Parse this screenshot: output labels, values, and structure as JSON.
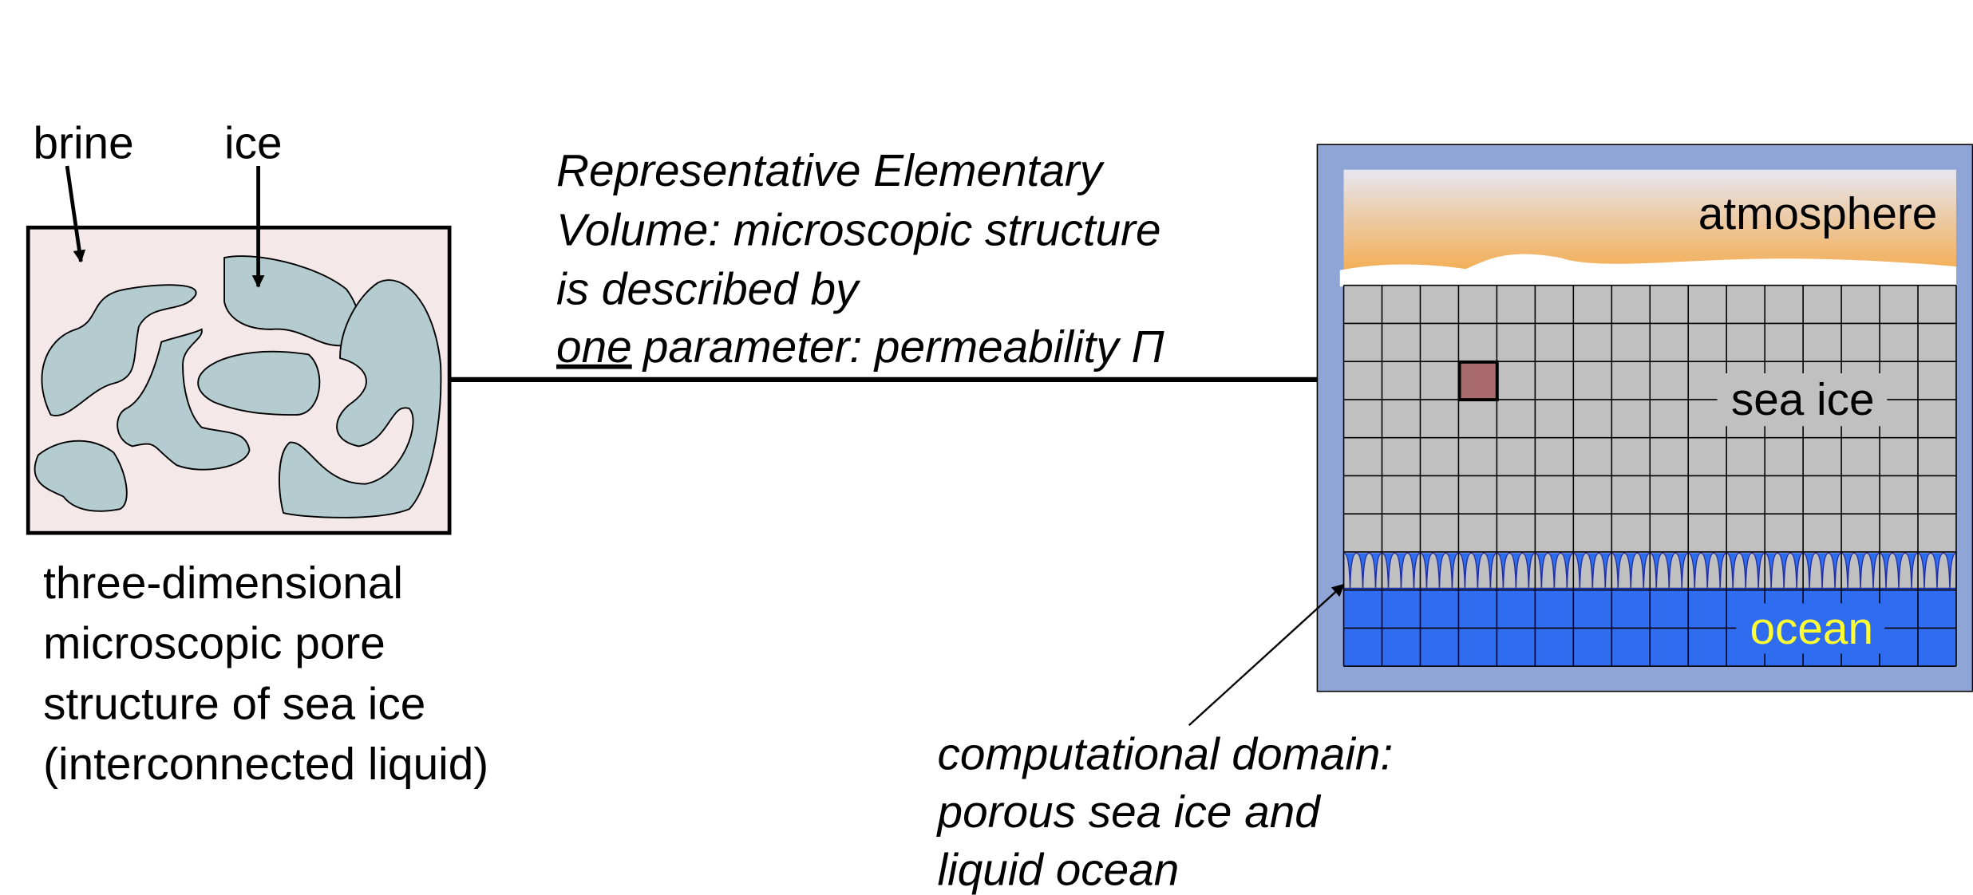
{
  "left_panel": {
    "labels": {
      "brine": "brine",
      "ice": "ice"
    },
    "caption": [
      "three-dimensional",
      "microscopic pore",
      "structure of sea ice",
      "(interconnected liquid)"
    ]
  },
  "rev_text": {
    "lines": [
      "Representative Elementary",
      "Volume: microscopic structure",
      "is described by"
    ],
    "last_line": {
      "underlined": "one",
      "rest": "parameter: permeability Π"
    }
  },
  "domain": {
    "labels": {
      "atmosphere": "atmosphere",
      "sea_ice": "sea ice",
      "ocean": "ocean"
    },
    "caption": [
      "computational domain:",
      "porous sea ice and",
      "liquid ocean"
    ]
  }
}
